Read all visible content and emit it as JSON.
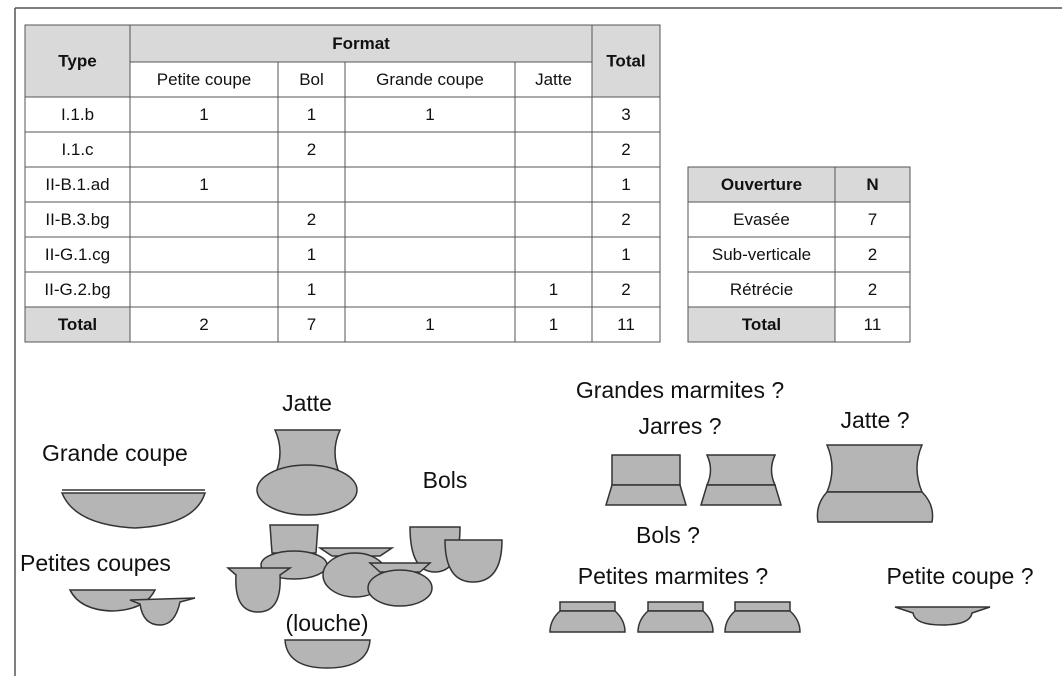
{
  "format_table": {
    "header": {
      "type": "Type",
      "format": "Format",
      "total": "Total"
    },
    "formats": [
      "Petite coupe",
      "Bol",
      "Grande coupe",
      "Jatte"
    ],
    "rows": [
      [
        "I.1.b",
        1,
        1,
        1,
        null,
        3
      ],
      [
        "I.1.c",
        null,
        2,
        null,
        null,
        2
      ],
      [
        "II-B.1.ad",
        1,
        null,
        null,
        null,
        1
      ],
      [
        "II-B.3.bg",
        null,
        2,
        null,
        null,
        2
      ],
      [
        "II-G.1.cg",
        null,
        1,
        null,
        null,
        1
      ],
      [
        "II-G.2.bg",
        null,
        1,
        null,
        1,
        2
      ]
    ],
    "total_row": [
      "Total",
      2,
      7,
      1,
      1,
      11
    ]
  },
  "ouverture_table": {
    "header": [
      "Ouverture",
      "N"
    ],
    "rows": [
      [
        "Evasée",
        7
      ],
      [
        "Sub-verticale",
        2
      ],
      [
        "Rétrécie",
        2
      ]
    ],
    "total_row": [
      "Total",
      11
    ]
  },
  "labels": {
    "jatte": "Jatte",
    "grande_coupe": "Grande coupe",
    "bols": "Bols",
    "petites_coupes": "Petites coupes",
    "louche": "(louche)",
    "grandes_marmites": "Grandes marmites ?",
    "jarres": "Jarres ?",
    "jatte_q": "Jatte ?",
    "bols_q": "Bols ?",
    "petites_marmites": "Petites marmites ?",
    "petite_coupe_q": "Petite coupe ?"
  }
}
